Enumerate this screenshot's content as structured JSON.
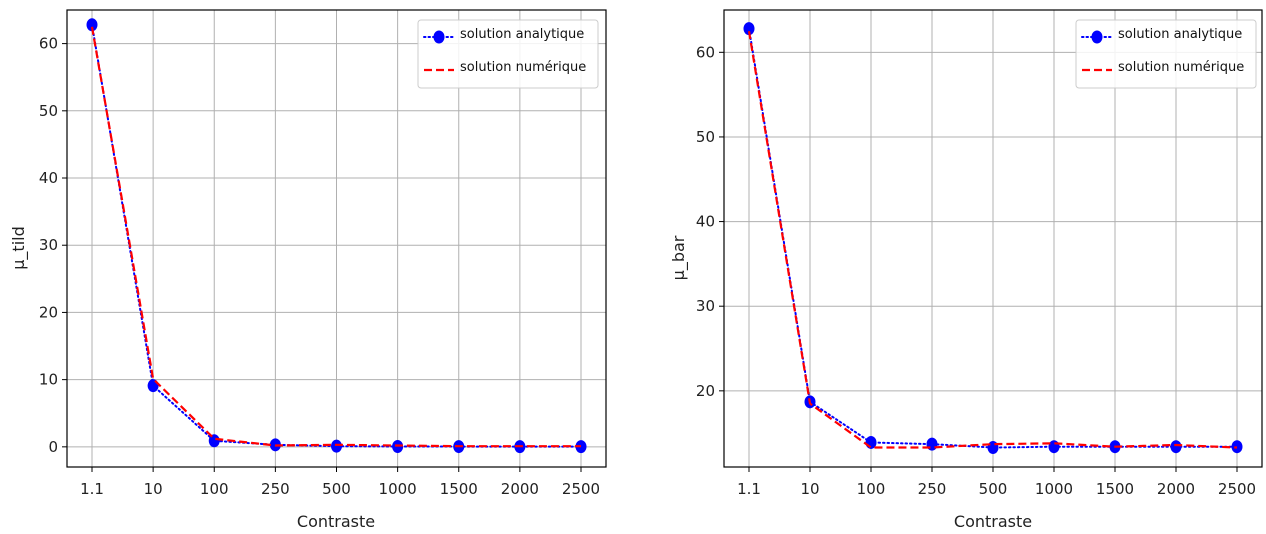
{
  "chart_data": [
    {
      "type": "line",
      "title": "",
      "xlabel": "Contraste",
      "ylabel": "µ_tild",
      "categories": [
        "1.1",
        "10",
        "100",
        "250",
        "500",
        "1000",
        "1500",
        "2000",
        "2500"
      ],
      "ylim": [
        -3,
        65
      ],
      "yticks": [
        0,
        10,
        20,
        30,
        40,
        50,
        60
      ],
      "grid": true,
      "legend_position": "top-right",
      "series": [
        {
          "name": "solution analytique",
          "color": "#0000ff",
          "style": "dotted-markers",
          "values": [
            62.8,
            9.1,
            0.9,
            0.3,
            0.1,
            0.05,
            0.04,
            0.03,
            0.03
          ]
        },
        {
          "name": "solution numérique",
          "color": "#ff0000",
          "style": "dashed",
          "values": [
            62.5,
            10.1,
            1.2,
            0.2,
            0.3,
            0.2,
            0.1,
            0.1,
            0.1
          ]
        }
      ]
    },
    {
      "type": "line",
      "title": "",
      "xlabel": "Contraste",
      "ylabel": "µ_bar",
      "categories": [
        "1.1",
        "10",
        "100",
        "250",
        "500",
        "1000",
        "1500",
        "2000",
        "2500"
      ],
      "ylim": [
        11,
        65
      ],
      "yticks": [
        20,
        30,
        40,
        50,
        60
      ],
      "grid": true,
      "legend_position": "top-right",
      "series": [
        {
          "name": "solution analytique",
          "color": "#0000ff",
          "style": "dotted-markers",
          "values": [
            62.8,
            18.7,
            13.9,
            13.7,
            13.3,
            13.4,
            13.4,
            13.4,
            13.4
          ]
        },
        {
          "name": "solution numérique",
          "color": "#ff0000",
          "style": "dashed",
          "values": [
            62.5,
            18.5,
            13.3,
            13.3,
            13.7,
            13.8,
            13.4,
            13.6,
            13.3
          ]
        }
      ]
    }
  ]
}
